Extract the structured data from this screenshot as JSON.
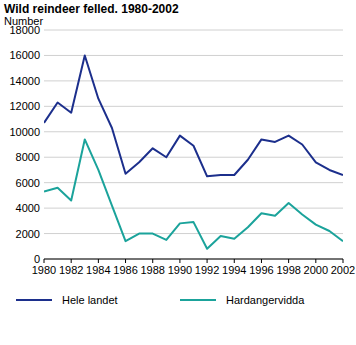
{
  "chart_data": {
    "type": "line",
    "title": "Wild reindeer felled. 1980-2002",
    "y_label": "Number",
    "x": [
      1980,
      1981,
      1982,
      1983,
      1984,
      1985,
      1986,
      1987,
      1988,
      1989,
      1990,
      1991,
      1992,
      1993,
      1994,
      1995,
      1996,
      1997,
      1998,
      1999,
      2000,
      2001,
      2002
    ],
    "series": [
      {
        "name": "Hele landet",
        "color": "#1c2f8c",
        "values": [
          10700,
          12300,
          11500,
          16000,
          12600,
          10300,
          6700,
          7600,
          8700,
          8000,
          9700,
          8900,
          6500,
          6600,
          6600,
          7800,
          9400,
          9200,
          9700,
          9000,
          7600,
          7000,
          6600
        ]
      },
      {
        "name": "Hardangervidda",
        "color": "#1ba39b",
        "values": [
          5300,
          5600,
          4600,
          9400,
          7000,
          4200,
          1400,
          2000,
          2000,
          1500,
          2800,
          2900,
          800,
          1800,
          1600,
          2500,
          3600,
          3400,
          4400,
          3500,
          2700,
          2200,
          1400
        ]
      }
    ],
    "xlim": [
      1980,
      2002
    ],
    "xticks": [
      1980,
      1982,
      1984,
      1986,
      1988,
      1990,
      1992,
      1994,
      1996,
      1998,
      2000,
      2002
    ],
    "ylim": [
      0,
      18000
    ],
    "yticks": [
      0,
      2000,
      4000,
      6000,
      8000,
      10000,
      12000,
      14000,
      16000,
      18000
    ],
    "grid": true,
    "legend": "bottom"
  }
}
